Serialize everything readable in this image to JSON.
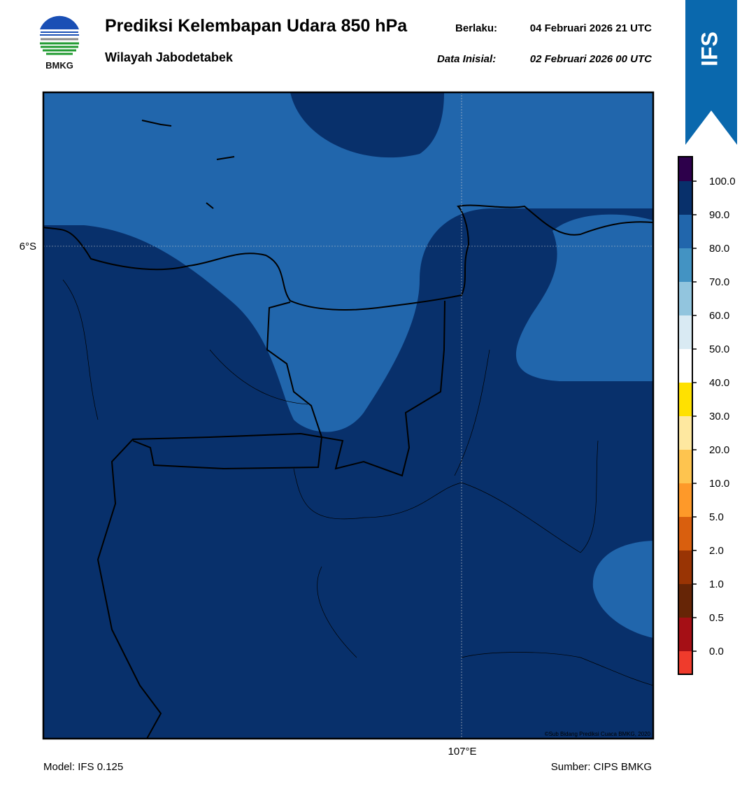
{
  "logo": {
    "text": "BMKG"
  },
  "header": {
    "title": "Prediksi Kelembapan Udara 850 hPa",
    "valid_label": "Berlaku:",
    "valid_time": "04 Februari 2026 21 UTC",
    "subtitle": "Wilayah Jabodetabek",
    "init_label": "Data Inisial:",
    "init_time": "02 Februari 2026 00 UTC"
  },
  "badge": {
    "text": "IFS"
  },
  "map": {
    "lat_label": "6°S",
    "lon_label": "107°E",
    "credit": "©Sub Bidang Prediksi Cuaca BMKG, 2020"
  },
  "colorbar": {
    "labels": [
      "100.0",
      "90.0",
      "80.0",
      "70.0",
      "60.0",
      "50.0",
      "40.0",
      "30.0",
      "20.0",
      "10.0",
      "5.0",
      "2.0",
      "1.0",
      "0.5",
      "0.0"
    ]
  },
  "footer": {
    "model": "Model: IFS 0.125",
    "source": "Sumber: CIPS BMKG"
  }
}
